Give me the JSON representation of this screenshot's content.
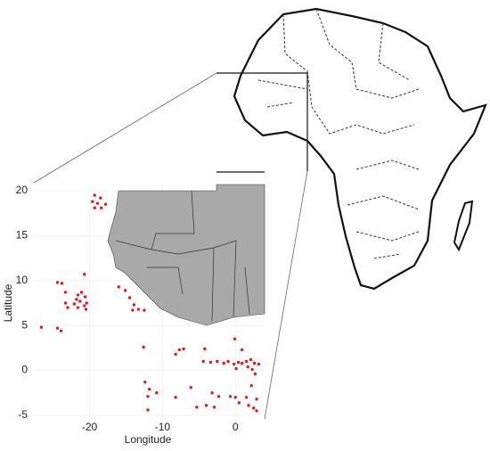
{
  "chart_data": {
    "type": "scatter",
    "x_label": "Longitude",
    "y_label": "Latitude",
    "xlim": [
      -28,
      4
    ],
    "ylim": [
      -5.8,
      20.7
    ],
    "xticks": [
      -20,
      -10,
      0
    ],
    "yticks": [
      -5,
      0,
      5,
      10,
      15,
      20
    ],
    "grid": true,
    "color": "#e31a1c",
    "x": [
      -19.3,
      -18.5,
      -17.8,
      -19.6,
      -18.9,
      -19.3,
      -18.4,
      -20.7,
      -24.4,
      -23.8,
      -23.3,
      -21.6,
      -21.1,
      -20.6,
      -21.8,
      -21.3,
      -22.1,
      -21.6,
      -20.7,
      -20.4,
      -20.5,
      -23.3,
      -23.0,
      -24.4,
      -23.9,
      -26.6,
      -16.0,
      -15.1,
      -14.5,
      -13.9,
      -13.3,
      -12.5,
      -14.1,
      -12.6,
      -8.2,
      -7.7,
      -7.1,
      -4.2,
      -0.1,
      0.9,
      -4.4,
      -3.4,
      -2.5,
      -1.6,
      -1.0,
      -0.2,
      0.4,
      0.9,
      1.5,
      2.1,
      2.6,
      3.2,
      1.7,
      2.3,
      2.7,
      0.1,
      -12.4,
      -11.8,
      -10.8,
      -12.0,
      -6.1,
      -3.2,
      -2.3,
      -5.3,
      -4.0,
      -2.9,
      -0.7,
      0.0,
      0.5,
      1.5,
      2.2,
      1.8,
      2.5,
      2.9,
      2.9,
      -12.0,
      -8.2
    ],
    "y": [
      19.5,
      19.2,
      18.5,
      18.8,
      18.6,
      18.1,
      18.1,
      10.7,
      9.8,
      9.7,
      8.7,
      8.4,
      8.7,
      8.2,
      7.9,
      7.7,
      7.4,
      7.0,
      7.2,
      7.5,
      6.8,
      7.5,
      7.0,
      4.7,
      4.4,
      4.8,
      9.3,
      8.9,
      8.1,
      7.3,
      6.8,
      6.7,
      6.7,
      2.6,
      1.8,
      2.3,
      2.4,
      2.4,
      3.5,
      2.3,
      1.0,
      0.9,
      1.0,
      0.8,
      1.0,
      0.7,
      0.9,
      0.8,
      1.0,
      1.2,
      0.8,
      0.7,
      0.4,
      0.1,
      -0.4,
      0.2,
      -1.3,
      -2.1,
      -2.5,
      -2.9,
      -1.9,
      -2.5,
      -2.9,
      -4.1,
      -3.9,
      -4.1,
      -2.9,
      -3.0,
      -3.6,
      -3.0,
      -1.7,
      -3.9,
      -4.2,
      -4.5,
      -3.2,
      -4.4,
      -3.0
    ]
  }
}
